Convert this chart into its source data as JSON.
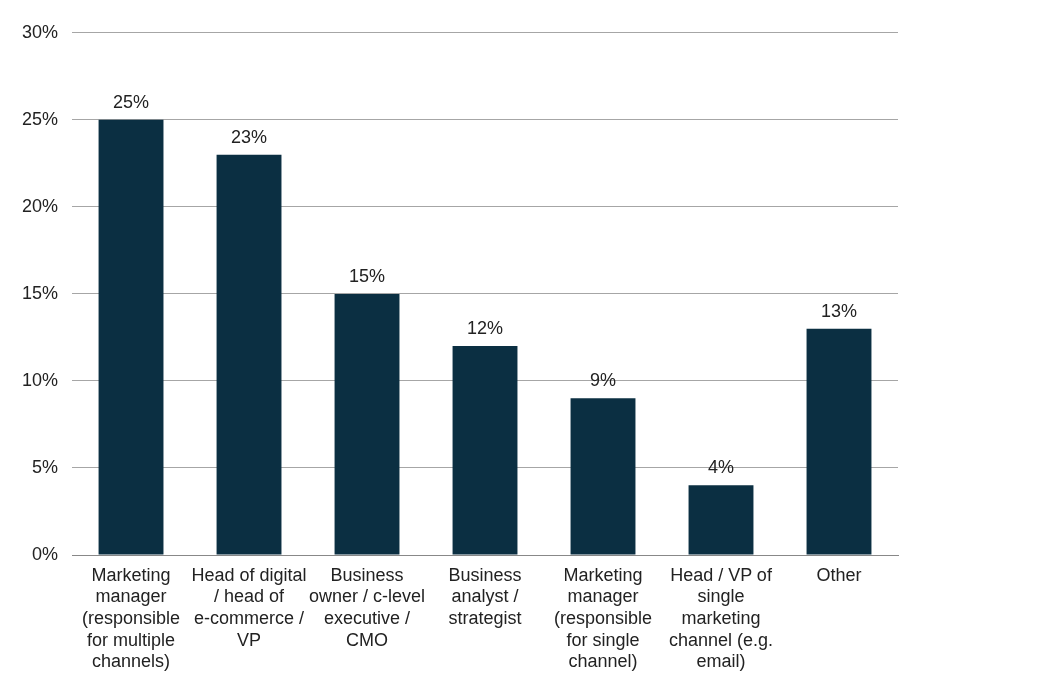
{
  "chart_data": {
    "type": "bar",
    "categories": [
      "Marketing manager (responsible for multiple channels)",
      "Head of digital / head of e-commerce / VP",
      "Business owner / c-level executive / CMO",
      "Business analyst / strategist",
      "Marketing manager (responsible for single channel)",
      "Head / VP of single marketing channel (e.g. email)",
      "Other"
    ],
    "values": [
      25,
      23,
      15,
      12,
      9,
      4,
      13
    ],
    "value_labels": [
      "25%",
      "23%",
      "15%",
      "12%",
      "9%",
      "4%",
      "13%"
    ],
    "color": "#0b2f42",
    "ylim": [
      0,
      30
    ],
    "yticks": [
      {
        "value": 0,
        "label": "0%"
      },
      {
        "value": 5,
        "label": "5%"
      },
      {
        "value": 10,
        "label": "10%"
      },
      {
        "value": 15,
        "label": "15%"
      },
      {
        "value": 20,
        "label": "20%"
      },
      {
        "value": 25,
        "label": "25%"
      },
      {
        "value": 30,
        "label": "30%"
      }
    ],
    "grid": "y",
    "legend": false
  }
}
